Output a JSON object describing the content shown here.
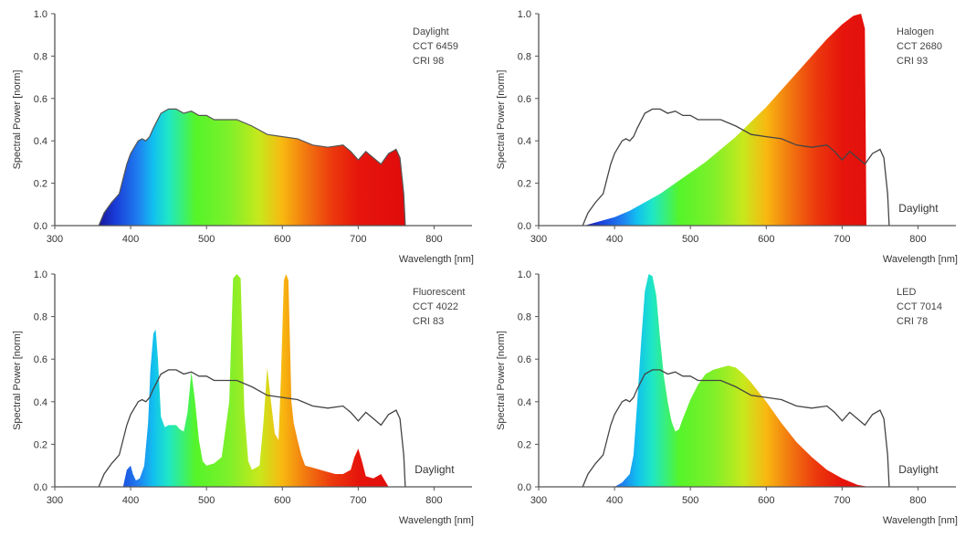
{
  "chart_data": [
    {
      "type": "area",
      "panel_id": "daylight",
      "annotation_lines": [
        "Daylight",
        "CCT 6459",
        "CRI 98"
      ],
      "xlabel": "Wavelength [nm]",
      "ylabel": "Spectral Power [norm]",
      "xlim": [
        300,
        850
      ],
      "ylim": [
        0,
        1.0
      ],
      "xticks": [
        300,
        400,
        500,
        600,
        700,
        800
      ],
      "yticks": [
        0.0,
        0.2,
        0.4,
        0.6,
        0.8,
        1.0
      ],
      "grid": false,
      "series": [
        {
          "role": "fill",
          "x": [
            358,
            365,
            375,
            385,
            395,
            400,
            405,
            410,
            415,
            420,
            425,
            430,
            440,
            450,
            460,
            470,
            480,
            490,
            500,
            510,
            520,
            540,
            560,
            580,
            600,
            620,
            640,
            660,
            680,
            690,
            700,
            710,
            720,
            730,
            740,
            750,
            755,
            760,
            762
          ],
          "y": [
            0.0,
            0.06,
            0.11,
            0.15,
            0.29,
            0.34,
            0.37,
            0.4,
            0.41,
            0.4,
            0.42,
            0.46,
            0.53,
            0.55,
            0.55,
            0.53,
            0.54,
            0.52,
            0.52,
            0.5,
            0.5,
            0.5,
            0.47,
            0.43,
            0.42,
            0.41,
            0.38,
            0.37,
            0.38,
            0.35,
            0.31,
            0.35,
            0.32,
            0.29,
            0.34,
            0.36,
            0.32,
            0.15,
            0.0
          ]
        }
      ],
      "show_daylight_label": false
    },
    {
      "type": "area",
      "panel_id": "halogen",
      "annotation_lines": [
        "Halogen",
        "CCT 2680",
        "CRI 93"
      ],
      "xlabel": "Wavelength [nm]",
      "ylabel": "Spectral Power [norm]",
      "xlim": [
        300,
        850
      ],
      "ylim": [
        0,
        1.0
      ],
      "xticks": [
        300,
        400,
        500,
        600,
        700,
        800
      ],
      "yticks": [
        0.0,
        0.2,
        0.4,
        0.6,
        0.8,
        1.0
      ],
      "grid": false,
      "series": [
        {
          "role": "fill",
          "x": [
            360,
            380,
            400,
            420,
            440,
            460,
            480,
            500,
            520,
            540,
            560,
            580,
            600,
            620,
            640,
            660,
            680,
            700,
            715,
            725,
            730,
            732
          ],
          "y": [
            0.0,
            0.02,
            0.04,
            0.07,
            0.11,
            0.15,
            0.2,
            0.25,
            0.3,
            0.36,
            0.42,
            0.49,
            0.56,
            0.64,
            0.72,
            0.8,
            0.88,
            0.95,
            0.99,
            1.0,
            0.93,
            0.0
          ]
        },
        {
          "role": "line",
          "name": "Daylight"
        }
      ],
      "show_daylight_label": true,
      "daylight_label": "Daylight"
    },
    {
      "type": "area",
      "panel_id": "fluorescent",
      "annotation_lines": [
        "Fluorescent",
        "CCT 4022",
        "CRI 83"
      ],
      "xlabel": "Wavelength [nm]",
      "ylabel": "Spectral Power [norm]",
      "xlim": [
        300,
        850
      ],
      "ylim": [
        0,
        1.0
      ],
      "xticks": [
        300,
        400,
        500,
        600,
        700,
        800
      ],
      "yticks": [
        0.0,
        0.2,
        0.4,
        0.6,
        0.8,
        1.0
      ],
      "grid": false,
      "series": [
        {
          "role": "fill",
          "x": [
            390,
            395,
            400,
            403,
            407,
            412,
            418,
            423,
            426,
            430,
            433,
            436,
            440,
            445,
            450,
            460,
            465,
            470,
            475,
            480,
            485,
            490,
            495,
            500,
            510,
            520,
            530,
            535,
            540,
            545,
            550,
            555,
            560,
            570,
            575,
            580,
            585,
            590,
            595,
            598,
            602,
            605,
            608,
            612,
            615,
            620,
            625,
            630,
            640,
            650,
            660,
            670,
            680,
            690,
            695,
            700,
            705,
            710,
            720,
            730,
            740
          ],
          "y": [
            0.0,
            0.08,
            0.1,
            0.06,
            0.03,
            0.04,
            0.1,
            0.3,
            0.55,
            0.72,
            0.74,
            0.6,
            0.33,
            0.28,
            0.29,
            0.29,
            0.27,
            0.26,
            0.35,
            0.54,
            0.4,
            0.22,
            0.12,
            0.1,
            0.11,
            0.14,
            0.4,
            0.98,
            1.0,
            0.98,
            0.35,
            0.12,
            0.08,
            0.1,
            0.3,
            0.56,
            0.4,
            0.25,
            0.22,
            0.5,
            0.97,
            1.0,
            0.97,
            0.4,
            0.3,
            0.22,
            0.15,
            0.1,
            0.09,
            0.08,
            0.07,
            0.06,
            0.06,
            0.08,
            0.14,
            0.18,
            0.12,
            0.05,
            0.04,
            0.06,
            0.0
          ]
        },
        {
          "role": "line",
          "name": "Daylight"
        }
      ],
      "show_daylight_label": true,
      "daylight_label": "Daylight"
    },
    {
      "type": "area",
      "panel_id": "led",
      "annotation_lines": [
        "LED",
        "CCT 7014",
        "CRI 78"
      ],
      "xlabel": "Wavelength [nm]",
      "ylabel": "Spectral Power [norm]",
      "xlim": [
        300,
        850
      ],
      "ylim": [
        0,
        1.0
      ],
      "xticks": [
        300,
        400,
        500,
        600,
        700,
        800
      ],
      "yticks": [
        0.0,
        0.2,
        0.4,
        0.6,
        0.8,
        1.0
      ],
      "grid": false,
      "series": [
        {
          "role": "fill",
          "x": [
            400,
            410,
            420,
            425,
            430,
            435,
            440,
            445,
            450,
            455,
            460,
            465,
            470,
            475,
            480,
            485,
            490,
            500,
            510,
            520,
            530,
            540,
            550,
            560,
            570,
            580,
            600,
            620,
            640,
            660,
            680,
            700,
            720,
            735
          ],
          "y": [
            0.0,
            0.02,
            0.06,
            0.15,
            0.4,
            0.68,
            0.92,
            1.0,
            0.99,
            0.9,
            0.7,
            0.52,
            0.4,
            0.31,
            0.26,
            0.27,
            0.32,
            0.41,
            0.48,
            0.53,
            0.55,
            0.56,
            0.57,
            0.56,
            0.53,
            0.49,
            0.4,
            0.3,
            0.21,
            0.14,
            0.08,
            0.04,
            0.01,
            0.0
          ]
        },
        {
          "role": "line",
          "name": "Daylight"
        }
      ],
      "show_daylight_label": true,
      "daylight_label": "Daylight"
    }
  ]
}
